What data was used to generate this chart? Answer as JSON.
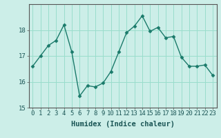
{
  "x": [
    0,
    1,
    2,
    3,
    4,
    5,
    6,
    7,
    8,
    9,
    10,
    11,
    12,
    13,
    14,
    15,
    16,
    17,
    18,
    19,
    20,
    21,
    22,
    23
  ],
  "y": [
    16.6,
    17.0,
    17.4,
    17.6,
    18.2,
    17.15,
    15.45,
    15.85,
    15.8,
    15.95,
    16.4,
    17.15,
    17.9,
    18.15,
    18.55,
    17.95,
    18.1,
    17.7,
    17.75,
    16.95,
    16.6,
    16.6,
    16.65,
    16.25
  ],
  "line_color": "#1a7a6a",
  "marker": "D",
  "marker_size": 2.5,
  "bg_color": "#cceee8",
  "grid_color": "#99ddcc",
  "xlabel": "Humidex (Indice chaleur)",
  "xlim": [
    -0.5,
    23.5
  ],
  "ylim": [
    15.0,
    19.0
  ],
  "yticks": [
    15,
    16,
    17,
    18
  ],
  "xticks": [
    0,
    1,
    2,
    3,
    4,
    5,
    6,
    7,
    8,
    9,
    10,
    11,
    12,
    13,
    14,
    15,
    16,
    17,
    18,
    19,
    20,
    21,
    22,
    23
  ],
  "xlabel_fontsize": 7.5,
  "tick_fontsize": 6.5,
  "line_width": 1.0,
  "spine_color": "#555555"
}
